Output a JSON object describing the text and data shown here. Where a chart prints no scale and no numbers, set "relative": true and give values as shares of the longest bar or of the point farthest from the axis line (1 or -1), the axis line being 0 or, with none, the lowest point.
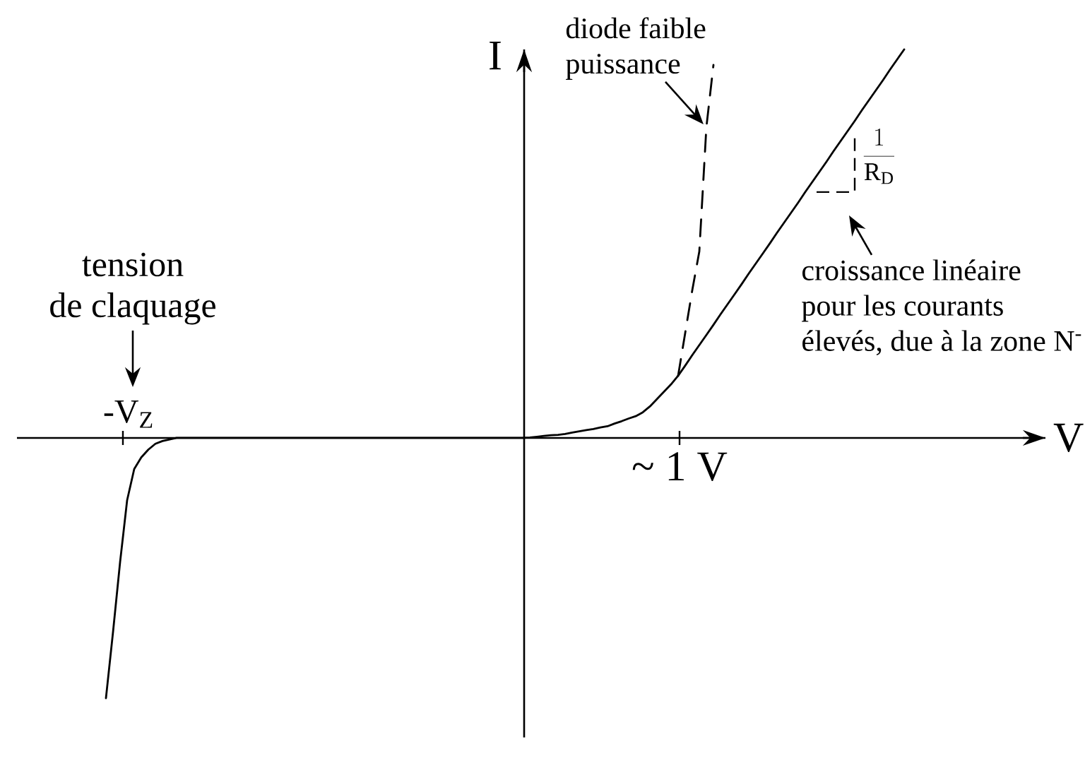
{
  "chart_data": {
    "type": "line",
    "xlabel": "V",
    "ylabel": "I",
    "relative": true,
    "categories": [
      null,
      null,
      null,
      null,
      null,
      null,
      null,
      null,
      null,
      null,
      null,
      null,
      null,
      null,
      null,
      null,
      null,
      null,
      null,
      null,
      null,
      null,
      null,
      null,
      null,
      null,
      null,
      null,
      null,
      null,
      null,
      null,
      null,
      null,
      null,
      null,
      null,
      null,
      null,
      null,
      null,
      null,
      null,
      null,
      null,
      null,
      null,
      null,
      null,
      null,
      null,
      null,
      null,
      null,
      null,
      null,
      null,
      null,
      null,
      null,
      null,
      null,
      null,
      null,
      null,
      null,
      null,
      null,
      null,
      null,
      null,
      null,
      null,
      null,
      null,
      null,
      null,
      null,
      null,
      null,
      null,
      null,
      null,
      null,
      null,
      null,
      null,
      null,
      null,
      null,
      null,
      null,
      null,
      null,
      null,
      null,
      null,
      null,
      null,
      null,
      null,
      null,
      null,
      null,
      null,
      null,
      null,
      null,
      null,
      null,
      null,
      null,
      null,
      null
    ],
    "series": [
      {
        "color": "#000000",
        "line_style": "solid",
        "values": [
          -0.67,
          -0.5,
          -0.32,
          -0.16,
          -0.08,
          -0.05,
          -0.03,
          -0.015,
          -0.008,
          -0.004,
          0,
          0,
          0,
          0,
          0,
          0,
          0,
          0,
          0,
          0,
          0,
          0,
          0,
          0,
          0,
          0,
          0,
          0,
          0,
          0,
          0,
          0,
          0,
          0,
          0,
          0,
          0,
          0,
          0,
          0,
          0,
          0,
          0,
          0,
          0,
          0,
          0,
          0,
          0,
          0,
          0,
          0,
          0,
          0,
          0,
          0,
          0,
          0,
          0,
          0,
          0.001,
          0.003,
          0.005,
          0.007,
          0.008,
          0.01,
          0.014,
          0.017,
          0.02,
          0.023,
          0.027,
          0.03,
          0.037,
          0.043,
          0.05,
          0.056,
          0.066,
          0.081,
          0.1,
          0.119,
          0.138,
          0.16,
          0.186,
          0.213,
          0.239,
          0.265,
          0.291,
          0.318,
          0.344,
          0.37,
          0.396,
          0.423,
          0.449,
          0.475,
          0.501,
          0.528,
          0.554,
          0.58,
          0.606,
          0.633,
          0.659,
          0.685,
          0.711,
          0.738,
          0.764,
          0.79,
          0.816,
          0.843,
          0.869,
          0.895,
          0.921,
          0.948,
          0.974,
          1
        ]
      },
      {
        "color": "#000000",
        "line_style": "dashed",
        "values": [
          null,
          null,
          null,
          null,
          null,
          null,
          null,
          null,
          null,
          null,
          null,
          null,
          null,
          null,
          null,
          null,
          null,
          null,
          null,
          null,
          null,
          null,
          null,
          null,
          null,
          null,
          null,
          null,
          null,
          null,
          null,
          null,
          null,
          null,
          null,
          null,
          null,
          null,
          null,
          null,
          null,
          null,
          null,
          null,
          null,
          null,
          null,
          null,
          null,
          null,
          null,
          null,
          null,
          null,
          null,
          null,
          null,
          null,
          null,
          null,
          null,
          null,
          null,
          null,
          null,
          null,
          null,
          null,
          null,
          null,
          null,
          null,
          null,
          null,
          null,
          null,
          null,
          null,
          null,
          null,
          null,
          0.16,
          0.27,
          0.38,
          0.48,
          0.8,
          0.96,
          null,
          null,
          null,
          null,
          null,
          null,
          null,
          null,
          null,
          null,
          null,
          null,
          null,
          null,
          null,
          null,
          null,
          null,
          null,
          null,
          null,
          null,
          null,
          null,
          null,
          null,
          null
        ]
      }
    ],
    "annotations": [
      "diode faible puissance",
      "tension de claquage",
      "-V$_{Z}$",
      "~ 1 V",
      "croissance linéaire pour les courants élevés, due à la zone N$^{-}$",
      "\\frac{1}{\\mathrm{R}_{\\mathrm{D}}}"
    ]
  }
}
